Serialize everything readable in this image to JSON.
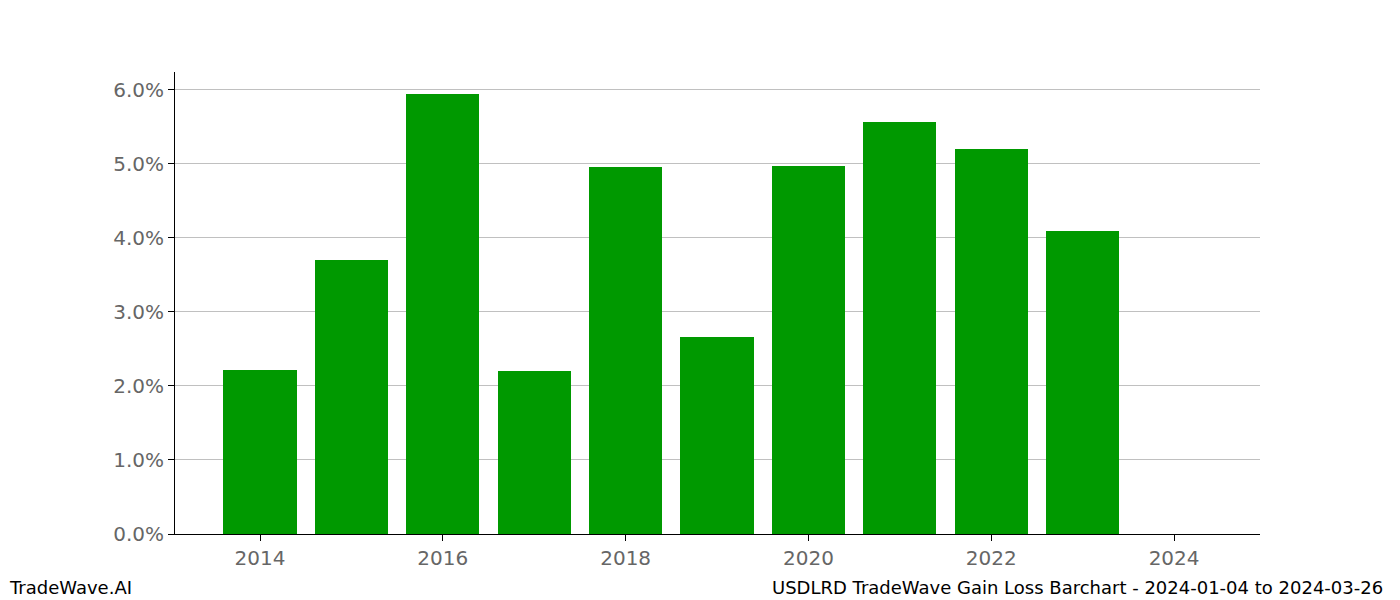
{
  "chart_data": {
    "type": "bar",
    "x": [
      2014,
      2015,
      2016,
      2017,
      2018,
      2019,
      2020,
      2021,
      2022,
      2023
    ],
    "values": [
      2.22,
      3.7,
      5.94,
      2.2,
      4.96,
      2.66,
      4.97,
      5.57,
      5.2,
      4.09
    ],
    "color": "#009900",
    "xlim": [
      2013.07,
      2024.94
    ],
    "xticks": [
      2014,
      2016,
      2018,
      2020,
      2022,
      2024
    ],
    "ylim": [
      0,
      6.24
    ],
    "yticks": [
      {
        "value": 0,
        "label": "0.0%"
      },
      {
        "value": 1,
        "label": "1.0%"
      },
      {
        "value": 2,
        "label": "2.0%"
      },
      {
        "value": 3,
        "label": "3.0%"
      },
      {
        "value": 4,
        "label": "4.0%"
      },
      {
        "value": 5,
        "label": "5.0%"
      },
      {
        "value": 6,
        "label": "6.0%"
      }
    ],
    "grid": true,
    "annotations": [
      "TradeWave.AI",
      "USDLRD TradeWave Gain Loss Barchart - 2024-01-04 to 2024-03-26"
    ]
  }
}
